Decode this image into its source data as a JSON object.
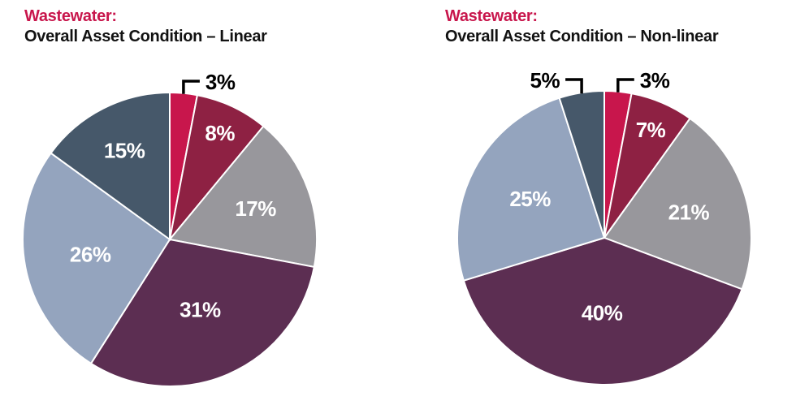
{
  "page": {
    "background": "#FFFFFF"
  },
  "text_colors": {
    "title_accent": "#C8164C",
    "title_main": "#121212"
  },
  "chart_data": [
    {
      "type": "pie",
      "title_accent": "Wastewater:",
      "title": "Overall Asset Condition – Linear",
      "start_angle_deg": 0,
      "direction": "clockwise",
      "slice_border_color": "#FFFFFF",
      "inside_label_color": "#FFFFFF",
      "callout_line_color": "#000000",
      "callout_text_color": "#000000",
      "categories": [
        "3%",
        "8%",
        "17%",
        "31%",
        "26%",
        "15%"
      ],
      "values": [
        3,
        8,
        17,
        31,
        26,
        15
      ],
      "slices": [
        {
          "label": "3%",
          "value": 3,
          "color": "#C8164C",
          "label_placement": "callout-right"
        },
        {
          "label": "8%",
          "value": 8,
          "color": "#8E2143",
          "label_placement": "inside",
          "label_r": 0.8
        },
        {
          "label": "17%",
          "value": 17,
          "color": "#98979C",
          "label_placement": "inside",
          "label_r": 0.62
        },
        {
          "label": "31%",
          "value": 31,
          "color": "#5C2E52",
          "label_placement": "inside",
          "label_r": 0.52
        },
        {
          "label": "26%",
          "value": 26,
          "color": "#94A4BE",
          "label_placement": "inside",
          "label_r": 0.55
        },
        {
          "label": "15%",
          "value": 15,
          "color": "#46586A",
          "label_placement": "inside",
          "label_r": 0.68
        }
      ]
    },
    {
      "type": "pie",
      "title_accent": "Wastewater:",
      "title": "Overall Asset Condition – Non-linear",
      "start_angle_deg": 0,
      "direction": "clockwise",
      "slice_border_color": "#FFFFFF",
      "inside_label_color": "#FFFFFF",
      "callout_line_color": "#000000",
      "callout_text_color": "#000000",
      "categories": [
        "3%",
        "7%",
        "21%",
        "40%",
        "25%",
        "5%"
      ],
      "values": [
        3,
        7,
        21,
        40,
        25,
        5
      ],
      "slices": [
        {
          "label": "3%",
          "value": 3,
          "color": "#C8164C",
          "label_placement": "callout-right"
        },
        {
          "label": "7%",
          "value": 7,
          "color": "#8E2143",
          "label_placement": "inside",
          "label_r": 0.8
        },
        {
          "label": "21%",
          "value": 21,
          "color": "#98979C",
          "label_placement": "inside",
          "label_r": 0.6
        },
        {
          "label": "40%",
          "value": 40,
          "color": "#5C2E52",
          "label_placement": "inside",
          "label_r": 0.51
        },
        {
          "label": "25%",
          "value": 25,
          "color": "#94A4BE",
          "label_placement": "inside",
          "label_r": 0.57
        },
        {
          "label": "5%",
          "value": 5,
          "color": "#46586A",
          "label_placement": "callout-left"
        }
      ]
    }
  ]
}
